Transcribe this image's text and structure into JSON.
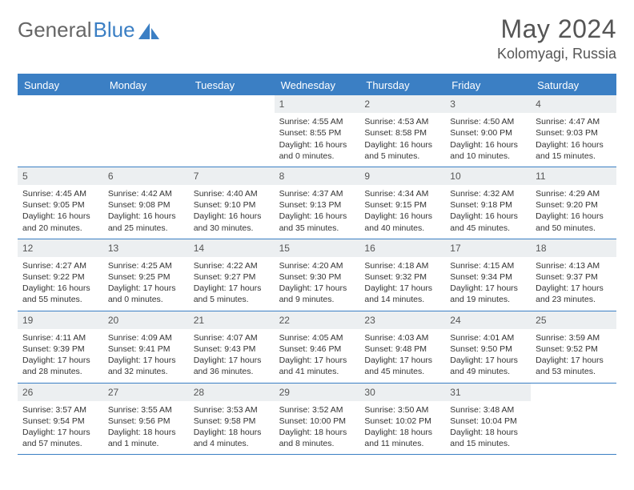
{
  "logo": {
    "text_general": "General",
    "text_blue": "Blue"
  },
  "title": {
    "month": "May 2024",
    "location": "Kolomyagi, Russia"
  },
  "colors": {
    "header_bg": "#3b7fc4",
    "header_text": "#ffffff",
    "daynum_bg": "#eceff1",
    "page_bg": "#ffffff",
    "text": "#333333",
    "title_text": "#555555"
  },
  "day_names": [
    "Sunday",
    "Monday",
    "Tuesday",
    "Wednesday",
    "Thursday",
    "Friday",
    "Saturday"
  ],
  "weeks": [
    [
      {
        "day": "",
        "empty": true
      },
      {
        "day": "",
        "empty": true
      },
      {
        "day": "",
        "empty": true
      },
      {
        "day": "1",
        "sunrise": "Sunrise: 4:55 AM",
        "sunset": "Sunset: 8:55 PM",
        "daylight1": "Daylight: 16 hours",
        "daylight2": "and 0 minutes."
      },
      {
        "day": "2",
        "sunrise": "Sunrise: 4:53 AM",
        "sunset": "Sunset: 8:58 PM",
        "daylight1": "Daylight: 16 hours",
        "daylight2": "and 5 minutes."
      },
      {
        "day": "3",
        "sunrise": "Sunrise: 4:50 AM",
        "sunset": "Sunset: 9:00 PM",
        "daylight1": "Daylight: 16 hours",
        "daylight2": "and 10 minutes."
      },
      {
        "day": "4",
        "sunrise": "Sunrise: 4:47 AM",
        "sunset": "Sunset: 9:03 PM",
        "daylight1": "Daylight: 16 hours",
        "daylight2": "and 15 minutes."
      }
    ],
    [
      {
        "day": "5",
        "sunrise": "Sunrise: 4:45 AM",
        "sunset": "Sunset: 9:05 PM",
        "daylight1": "Daylight: 16 hours",
        "daylight2": "and 20 minutes."
      },
      {
        "day": "6",
        "sunrise": "Sunrise: 4:42 AM",
        "sunset": "Sunset: 9:08 PM",
        "daylight1": "Daylight: 16 hours",
        "daylight2": "and 25 minutes."
      },
      {
        "day": "7",
        "sunrise": "Sunrise: 4:40 AM",
        "sunset": "Sunset: 9:10 PM",
        "daylight1": "Daylight: 16 hours",
        "daylight2": "and 30 minutes."
      },
      {
        "day": "8",
        "sunrise": "Sunrise: 4:37 AM",
        "sunset": "Sunset: 9:13 PM",
        "daylight1": "Daylight: 16 hours",
        "daylight2": "and 35 minutes."
      },
      {
        "day": "9",
        "sunrise": "Sunrise: 4:34 AM",
        "sunset": "Sunset: 9:15 PM",
        "daylight1": "Daylight: 16 hours",
        "daylight2": "and 40 minutes."
      },
      {
        "day": "10",
        "sunrise": "Sunrise: 4:32 AM",
        "sunset": "Sunset: 9:18 PM",
        "daylight1": "Daylight: 16 hours",
        "daylight2": "and 45 minutes."
      },
      {
        "day": "11",
        "sunrise": "Sunrise: 4:29 AM",
        "sunset": "Sunset: 9:20 PM",
        "daylight1": "Daylight: 16 hours",
        "daylight2": "and 50 minutes."
      }
    ],
    [
      {
        "day": "12",
        "sunrise": "Sunrise: 4:27 AM",
        "sunset": "Sunset: 9:22 PM",
        "daylight1": "Daylight: 16 hours",
        "daylight2": "and 55 minutes."
      },
      {
        "day": "13",
        "sunrise": "Sunrise: 4:25 AM",
        "sunset": "Sunset: 9:25 PM",
        "daylight1": "Daylight: 17 hours",
        "daylight2": "and 0 minutes."
      },
      {
        "day": "14",
        "sunrise": "Sunrise: 4:22 AM",
        "sunset": "Sunset: 9:27 PM",
        "daylight1": "Daylight: 17 hours",
        "daylight2": "and 5 minutes."
      },
      {
        "day": "15",
        "sunrise": "Sunrise: 4:20 AM",
        "sunset": "Sunset: 9:30 PM",
        "daylight1": "Daylight: 17 hours",
        "daylight2": "and 9 minutes."
      },
      {
        "day": "16",
        "sunrise": "Sunrise: 4:18 AM",
        "sunset": "Sunset: 9:32 PM",
        "daylight1": "Daylight: 17 hours",
        "daylight2": "and 14 minutes."
      },
      {
        "day": "17",
        "sunrise": "Sunrise: 4:15 AM",
        "sunset": "Sunset: 9:34 PM",
        "daylight1": "Daylight: 17 hours",
        "daylight2": "and 19 minutes."
      },
      {
        "day": "18",
        "sunrise": "Sunrise: 4:13 AM",
        "sunset": "Sunset: 9:37 PM",
        "daylight1": "Daylight: 17 hours",
        "daylight2": "and 23 minutes."
      }
    ],
    [
      {
        "day": "19",
        "sunrise": "Sunrise: 4:11 AM",
        "sunset": "Sunset: 9:39 PM",
        "daylight1": "Daylight: 17 hours",
        "daylight2": "and 28 minutes."
      },
      {
        "day": "20",
        "sunrise": "Sunrise: 4:09 AM",
        "sunset": "Sunset: 9:41 PM",
        "daylight1": "Daylight: 17 hours",
        "daylight2": "and 32 minutes."
      },
      {
        "day": "21",
        "sunrise": "Sunrise: 4:07 AM",
        "sunset": "Sunset: 9:43 PM",
        "daylight1": "Daylight: 17 hours",
        "daylight2": "and 36 minutes."
      },
      {
        "day": "22",
        "sunrise": "Sunrise: 4:05 AM",
        "sunset": "Sunset: 9:46 PM",
        "daylight1": "Daylight: 17 hours",
        "daylight2": "and 41 minutes."
      },
      {
        "day": "23",
        "sunrise": "Sunrise: 4:03 AM",
        "sunset": "Sunset: 9:48 PM",
        "daylight1": "Daylight: 17 hours",
        "daylight2": "and 45 minutes."
      },
      {
        "day": "24",
        "sunrise": "Sunrise: 4:01 AM",
        "sunset": "Sunset: 9:50 PM",
        "daylight1": "Daylight: 17 hours",
        "daylight2": "and 49 minutes."
      },
      {
        "day": "25",
        "sunrise": "Sunrise: 3:59 AM",
        "sunset": "Sunset: 9:52 PM",
        "daylight1": "Daylight: 17 hours",
        "daylight2": "and 53 minutes."
      }
    ],
    [
      {
        "day": "26",
        "sunrise": "Sunrise: 3:57 AM",
        "sunset": "Sunset: 9:54 PM",
        "daylight1": "Daylight: 17 hours",
        "daylight2": "and 57 minutes."
      },
      {
        "day": "27",
        "sunrise": "Sunrise: 3:55 AM",
        "sunset": "Sunset: 9:56 PM",
        "daylight1": "Daylight: 18 hours",
        "daylight2": "and 1 minute."
      },
      {
        "day": "28",
        "sunrise": "Sunrise: 3:53 AM",
        "sunset": "Sunset: 9:58 PM",
        "daylight1": "Daylight: 18 hours",
        "daylight2": "and 4 minutes."
      },
      {
        "day": "29",
        "sunrise": "Sunrise: 3:52 AM",
        "sunset": "Sunset: 10:00 PM",
        "daylight1": "Daylight: 18 hours",
        "daylight2": "and 8 minutes."
      },
      {
        "day": "30",
        "sunrise": "Sunrise: 3:50 AM",
        "sunset": "Sunset: 10:02 PM",
        "daylight1": "Daylight: 18 hours",
        "daylight2": "and 11 minutes."
      },
      {
        "day": "31",
        "sunrise": "Sunrise: 3:48 AM",
        "sunset": "Sunset: 10:04 PM",
        "daylight1": "Daylight: 18 hours",
        "daylight2": "and 15 minutes."
      },
      {
        "day": "",
        "empty": true
      }
    ]
  ]
}
